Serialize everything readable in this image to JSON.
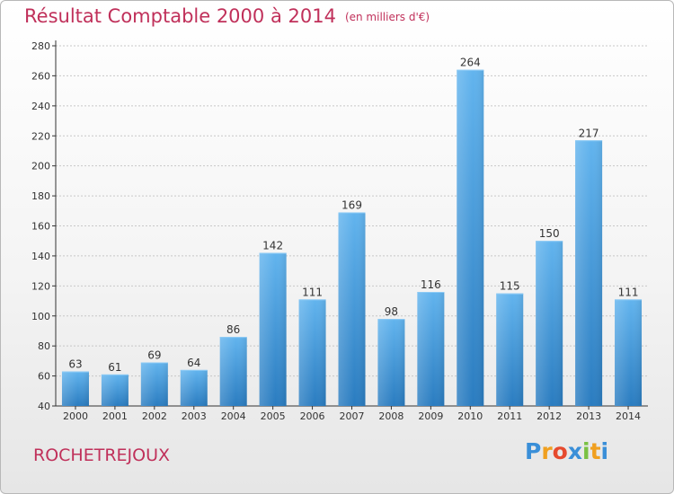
{
  "title": "Résultat Comptable 2000 à 2014",
  "unit_label": "(en milliers d'€)",
  "commune": "ROCHETREJOUX",
  "logo": {
    "letters": [
      "P",
      "r",
      "o",
      "x",
      "i",
      "t",
      "i"
    ],
    "colors": [
      "#3a8fd8",
      "#f0a020",
      "#e64a2e",
      "#3a8fd8",
      "#7ac143",
      "#f0a020",
      "#3a8fd8"
    ]
  },
  "colors": {
    "title": "#c0305a",
    "bar_top": "#62b4ee",
    "bar_bottom": "#2a7cc0"
  },
  "chart_data": {
    "type": "bar",
    "title": "Résultat Comptable 2000 à 2014",
    "subtitle": "(en milliers d'€)",
    "xlabel": "",
    "ylabel": "",
    "categories": [
      "2000",
      "2001",
      "2002",
      "2003",
      "2004",
      "2005",
      "2006",
      "2007",
      "2008",
      "2009",
      "2010",
      "2011",
      "2012",
      "2013",
      "2014"
    ],
    "values": [
      63,
      61,
      69,
      64,
      86,
      142,
      111,
      169,
      98,
      116,
      264,
      115,
      150,
      217,
      111
    ],
    "ylim": [
      40,
      280
    ],
    "yticks": [
      40,
      60,
      80,
      100,
      120,
      140,
      160,
      180,
      200,
      220,
      240,
      260,
      280
    ],
    "grid": true
  }
}
